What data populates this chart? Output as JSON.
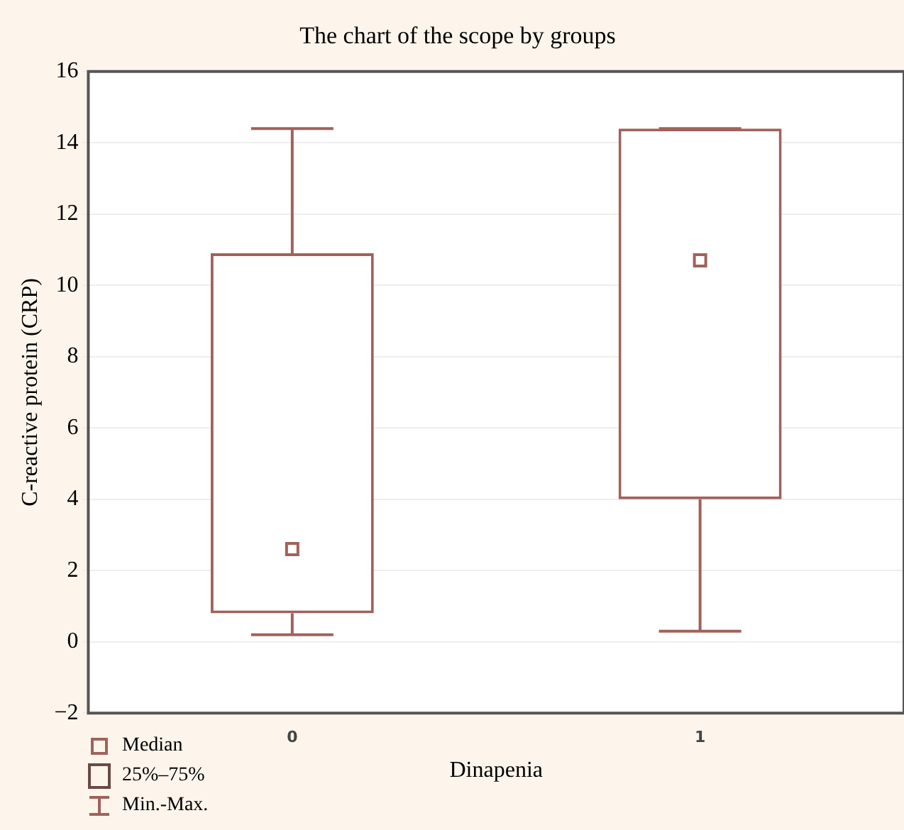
{
  "chart_data": {
    "type": "box",
    "title": "The chart of the scope by groups",
    "xlabel": "Dinapenia",
    "ylabel": "C-reactive protein (CRP)",
    "categories": [
      "0",
      "1"
    ],
    "boxes": [
      {
        "low": 0.2,
        "q1": 0.8,
        "median": 2.6,
        "q3": 10.9,
        "high": 14.4
      },
      {
        "low": 0.3,
        "q1": 4.0,
        "median": 10.7,
        "q3": 14.4,
        "high": 14.4
      }
    ],
    "color": "#a0625a",
    "ylim": [
      -2,
      16
    ],
    "yticks": [
      {
        "value": -2,
        "label": "−2"
      },
      0,
      2,
      4,
      6,
      8,
      10,
      12,
      14,
      16
    ],
    "grid": "y",
    "annotations": [
      "Median",
      "25%–75%",
      "Min.-Max."
    ]
  }
}
